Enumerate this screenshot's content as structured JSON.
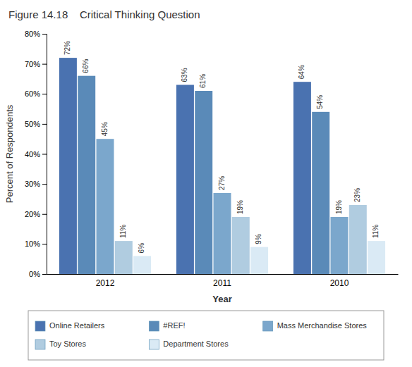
{
  "chart_data": {
    "type": "bar",
    "title": "Figure 14.18    Critical Thinking Question",
    "xlabel": "Year",
    "ylabel": "Percent of Respondents",
    "categories": [
      "2012",
      "2011",
      "2010"
    ],
    "series": [
      {
        "name": "Online Retailers",
        "color": "#4a72b0",
        "values": [
          72,
          63,
          64
        ],
        "value_labels": [
          "72%",
          "63%",
          "64%"
        ]
      },
      {
        "name": "#REF!",
        "color": "#5a8ab8",
        "values": [
          66,
          61,
          54
        ],
        "value_labels": [
          "66%",
          "61%",
          "54%"
        ]
      },
      {
        "name": "Mass Merchandise Stores",
        "color": "#7ba7cc",
        "values": [
          45,
          27,
          19
        ],
        "value_labels": [
          "45%",
          "27%",
          "19%"
        ]
      },
      {
        "name": "Toy Stores",
        "color": "#b0cce0",
        "values": [
          11,
          19,
          23
        ],
        "value_labels": [
          "11%",
          "19%",
          "23%"
        ]
      },
      {
        "name": "Department Stores",
        "color": "#daeaf5",
        "values": [
          6,
          9,
          11
        ],
        "value_labels": [
          "6%",
          "9%",
          "11%"
        ]
      }
    ],
    "ylim": [
      0,
      80
    ],
    "yticks": [
      {
        "value": 0,
        "label": "0%"
      },
      {
        "value": 10,
        "label": "10%"
      },
      {
        "value": 20,
        "label": "20%"
      },
      {
        "value": 30,
        "label": "30%"
      },
      {
        "value": 40,
        "label": "40%"
      },
      {
        "value": 50,
        "label": "50%"
      },
      {
        "value": 60,
        "label": "60%"
      },
      {
        "value": 70,
        "label": "70%"
      },
      {
        "value": 80,
        "label": "80%"
      }
    ],
    "grid": false,
    "legend": "bottom",
    "data_labels": true
  }
}
